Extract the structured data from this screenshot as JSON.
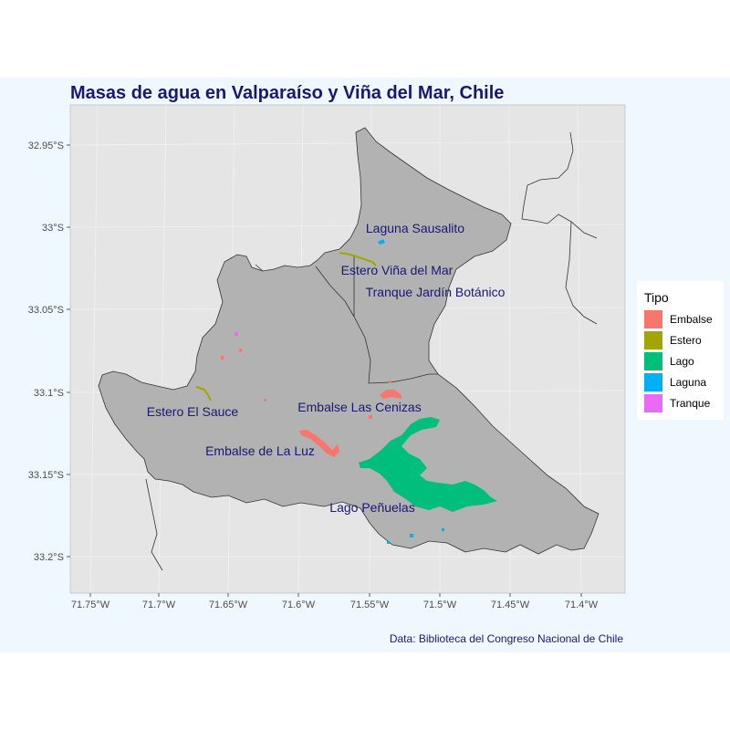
{
  "title": "Masas de agua en Valparaíso y Viña del Mar, Chile",
  "caption": "Data: Biblioteca del Congreso Nacional de Chile",
  "axes": {
    "x_ticks": [
      "71.75°W",
      "71.7°W",
      "71.65°W",
      "71.6°W",
      "71.55°W",
      "71.5°W",
      "71.45°W",
      "71.4°W"
    ],
    "y_ticks": [
      "32.95°S",
      "33°S",
      "33.05°S",
      "33.1°S",
      "33.15°S",
      "33.2°S"
    ]
  },
  "legend": {
    "title": "Tipo",
    "items": [
      {
        "label": "Embalse",
        "color": "#f8766d"
      },
      {
        "label": "Estero",
        "color": "#a3a500"
      },
      {
        "label": "Lago",
        "color": "#00bf7d"
      },
      {
        "label": "Laguna",
        "color": "#00b0f6"
      },
      {
        "label": "Tranque",
        "color": "#e76bf3"
      }
    ]
  },
  "labels": {
    "laguna_sausalito": "Laguna Sausalito",
    "estero_vina": "Estero Viña del Mar",
    "tranque_jardin": "Tranque Jardín Botánico",
    "estero_sauce": "Estero El Sauce",
    "embalse_cenizas": "Embalse Las Cenizas",
    "embalse_luz": "Embalse de La Luz",
    "lago_penuelas": "Lago Peñuelas"
  },
  "colors": {
    "panel": "#e5e5e5",
    "region": "#b2b2b2",
    "background": "#f0f8ff",
    "title": "#191970"
  }
}
